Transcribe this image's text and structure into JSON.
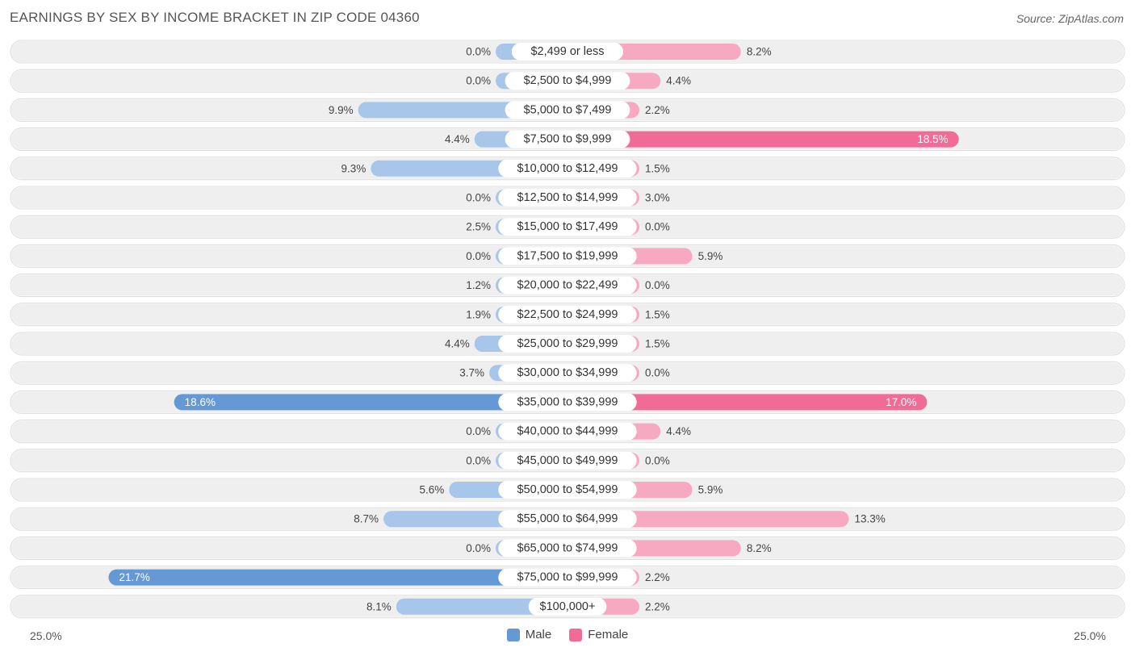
{
  "header": {
    "title": "EARNINGS BY SEX BY INCOME BRACKET IN ZIP CODE 04360",
    "source": "Source: ZipAtlas.com"
  },
  "axis": {
    "left_label": "25.0%",
    "right_label": "25.0%"
  },
  "legend": {
    "male": "Male",
    "female": "Female"
  },
  "colors": {
    "male_light": "#a7c6ea",
    "male_dark": "#6499d6",
    "female_light": "#f6a9c1",
    "female_dark": "#f06b96",
    "row_bg": "#efefef"
  },
  "chart_data": {
    "type": "bar",
    "orientation": "diverging-horizontal",
    "title": "EARNINGS BY SEX BY INCOME BRACKET IN ZIP CODE 04360",
    "xlim": [
      -25,
      25
    ],
    "unit": "%",
    "categories": [
      "$2,499 or less",
      "$2,500 to $4,999",
      "$5,000 to $7,499",
      "$7,500 to $9,999",
      "$10,000 to $12,499",
      "$12,500 to $14,999",
      "$15,000 to $17,499",
      "$17,500 to $19,999",
      "$20,000 to $22,499",
      "$22,500 to $24,999",
      "$25,000 to $29,999",
      "$30,000 to $34,999",
      "$35,000 to $39,999",
      "$40,000 to $44,999",
      "$45,000 to $49,999",
      "$50,000 to $54,999",
      "$55,000 to $64,999",
      "$65,000 to $74,999",
      "$75,000 to $99,999",
      "$100,000+"
    ],
    "series": [
      {
        "name": "Male",
        "values": [
          0.0,
          0.0,
          9.9,
          4.4,
          9.3,
          0.0,
          2.5,
          0.0,
          1.2,
          1.9,
          4.4,
          3.7,
          18.6,
          0.0,
          0.0,
          5.6,
          8.7,
          0.0,
          21.7,
          8.1
        ],
        "labels": [
          "0.0%",
          "0.0%",
          "9.9%",
          "4.4%",
          "9.3%",
          "0.0%",
          "2.5%",
          "0.0%",
          "1.2%",
          "1.9%",
          "4.4%",
          "3.7%",
          "18.6%",
          "0.0%",
          "0.0%",
          "5.6%",
          "8.7%",
          "0.0%",
          "21.7%",
          "8.1%"
        ]
      },
      {
        "name": "Female",
        "values": [
          8.2,
          4.4,
          2.2,
          18.5,
          1.5,
          3.0,
          0.0,
          5.9,
          0.0,
          1.5,
          1.5,
          0.0,
          17.0,
          4.4,
          0.0,
          5.9,
          13.3,
          8.2,
          2.2,
          2.2
        ],
        "labels": [
          "8.2%",
          "4.4%",
          "2.2%",
          "18.5%",
          "1.5%",
          "3.0%",
          "0.0%",
          "5.9%",
          "0.0%",
          "1.5%",
          "1.5%",
          "0.0%",
          "17.0%",
          "4.4%",
          "0.0%",
          "5.9%",
          "13.3%",
          "8.2%",
          "2.2%",
          "2.2%"
        ]
      }
    ]
  }
}
